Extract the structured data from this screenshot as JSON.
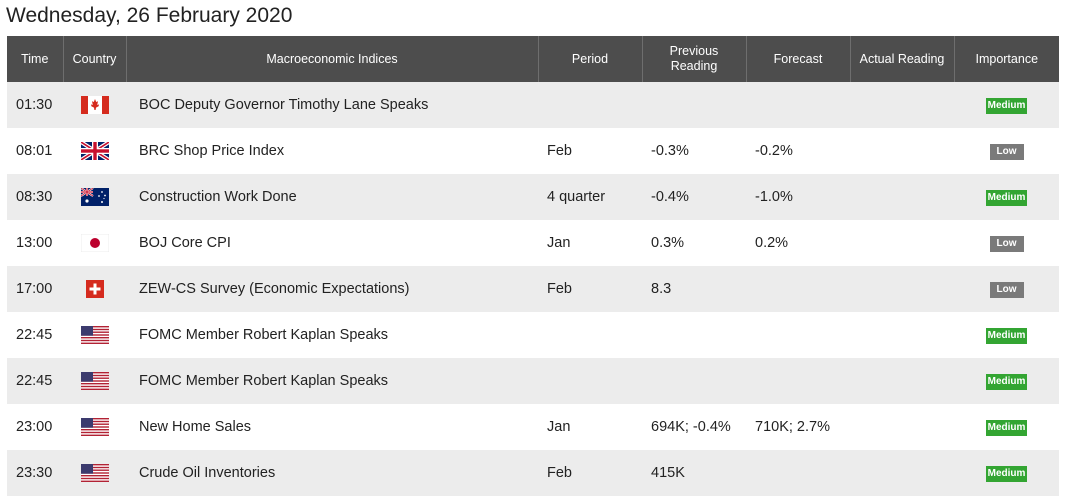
{
  "page_title": "Wednesday, 26 February 2020",
  "headers": {
    "time": "Time",
    "country": "Country",
    "indices": "Macroeconomic Indices",
    "period": "Period",
    "previous": "Previous Reading",
    "forecast": "Forecast",
    "actual": "Actual Reading",
    "importance": "Importance"
  },
  "colors": {
    "medium": "#33a532",
    "low": "#7a7a7a",
    "header": "#4d4d4d"
  },
  "rows": [
    {
      "time": "01:30",
      "flag": "canada-flag-icon",
      "name": "BOC Deputy Governor Timothy Lane Speaks",
      "period": "",
      "previous": "",
      "forecast": "",
      "actual": "",
      "importance": "Medium"
    },
    {
      "time": "08:01",
      "flag": "uk-flag-icon",
      "name": "BRC Shop Price Index",
      "period": "Feb",
      "previous": "-0.3%",
      "forecast": "-0.2%",
      "actual": "",
      "importance": "Low"
    },
    {
      "time": "08:30",
      "flag": "australia-flag-icon",
      "name": "Construction Work Done",
      "period": "4 quarter",
      "previous": "-0.4%",
      "forecast": "-1.0%",
      "actual": "",
      "importance": "Medium"
    },
    {
      "time": "13:00",
      "flag": "japan-flag-icon",
      "name": "BOJ Core CPI",
      "period": "Jan",
      "previous": "0.3%",
      "forecast": "0.2%",
      "actual": "",
      "importance": "Low"
    },
    {
      "time": "17:00",
      "flag": "switzerland-flag-icon",
      "name": "ZEW-CS Survey (Economic Expectations)",
      "period": "Feb",
      "previous": "8.3",
      "forecast": "",
      "actual": "",
      "importance": "Low"
    },
    {
      "time": "22:45",
      "flag": "usa-flag-icon",
      "name": "FOMC Member Robert Kaplan Speaks",
      "period": "",
      "previous": "",
      "forecast": "",
      "actual": "",
      "importance": "Medium"
    },
    {
      "time": "22:45",
      "flag": "usa-flag-icon",
      "name": "FOMC Member Robert Kaplan Speaks",
      "period": "",
      "previous": "",
      "forecast": "",
      "actual": "",
      "importance": "Medium"
    },
    {
      "time": "23:00",
      "flag": "usa-flag-icon",
      "name": "New Home Sales",
      "period": "Jan",
      "previous": "694K; -0.4%",
      "forecast": "710K; 2.7%",
      "actual": "",
      "importance": "Medium"
    },
    {
      "time": "23:30",
      "flag": "usa-flag-icon",
      "name": "Crude Oil Inventories",
      "period": "Feb",
      "previous": "415K",
      "forecast": "",
      "actual": "",
      "importance": "Medium"
    }
  ]
}
